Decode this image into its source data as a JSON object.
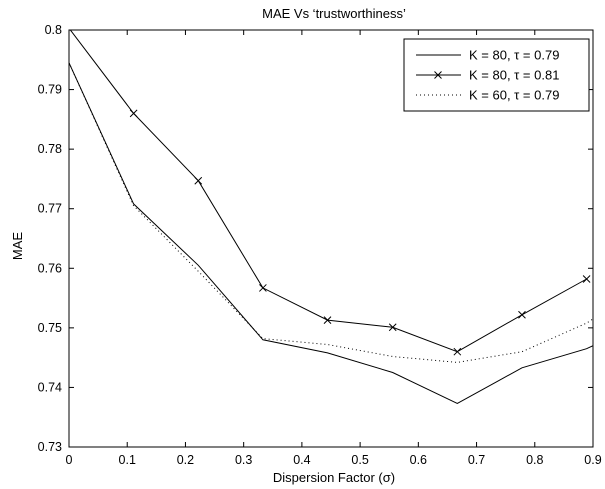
{
  "chart_data": {
    "type": "line",
    "title": "MAE Vs ‘trustworthiness’",
    "xlabel": "Dispersion Factor (σ)",
    "ylabel": "MAE",
    "xlim": [
      0,
      0.9
    ],
    "ylim": [
      0.73,
      0.8
    ],
    "xticks": [
      "0",
      "0.1",
      "0.2",
      "0.3",
      "0.4",
      "0.5",
      "0.6",
      "0.7",
      "0.8",
      "0.9"
    ],
    "yticks": [
      "0.73",
      "0.74",
      "0.75",
      "0.76",
      "0.77",
      "0.78",
      "0.79",
      "0.8"
    ],
    "grid": false,
    "legend_position": "top-right",
    "series": [
      {
        "name": "K = 80, τ = 0.79",
        "style": "solid",
        "marker": "none",
        "x": [
          0,
          0.111,
          0.222,
          0.333,
          0.444,
          0.556,
          0.667,
          0.778,
          0.889,
          0.9
        ],
        "y": [
          0.7945,
          0.7708,
          0.7605,
          0.748,
          0.7458,
          0.7425,
          0.7373,
          0.7433,
          0.7465,
          0.747
        ]
      },
      {
        "name": "K = 80, τ = 0.81",
        "style": "solid",
        "marker": "x",
        "x": [
          0,
          0.111,
          0.222,
          0.333,
          0.444,
          0.556,
          0.667,
          0.778,
          0.889
        ],
        "y": [
          0.8003,
          0.786,
          0.7747,
          0.7567,
          0.7513,
          0.7501,
          0.746,
          0.7522,
          0.7582
        ]
      },
      {
        "name": "K = 60, τ = 0.79",
        "style": "dotted",
        "marker": "none",
        "x": [
          0,
          0.111,
          0.222,
          0.333,
          0.444,
          0.556,
          0.667,
          0.778,
          0.889,
          0.9
        ],
        "y": [
          0.7945,
          0.7705,
          0.7595,
          0.7482,
          0.7472,
          0.7452,
          0.7442,
          0.746,
          0.7508,
          0.7515
        ]
      }
    ]
  }
}
